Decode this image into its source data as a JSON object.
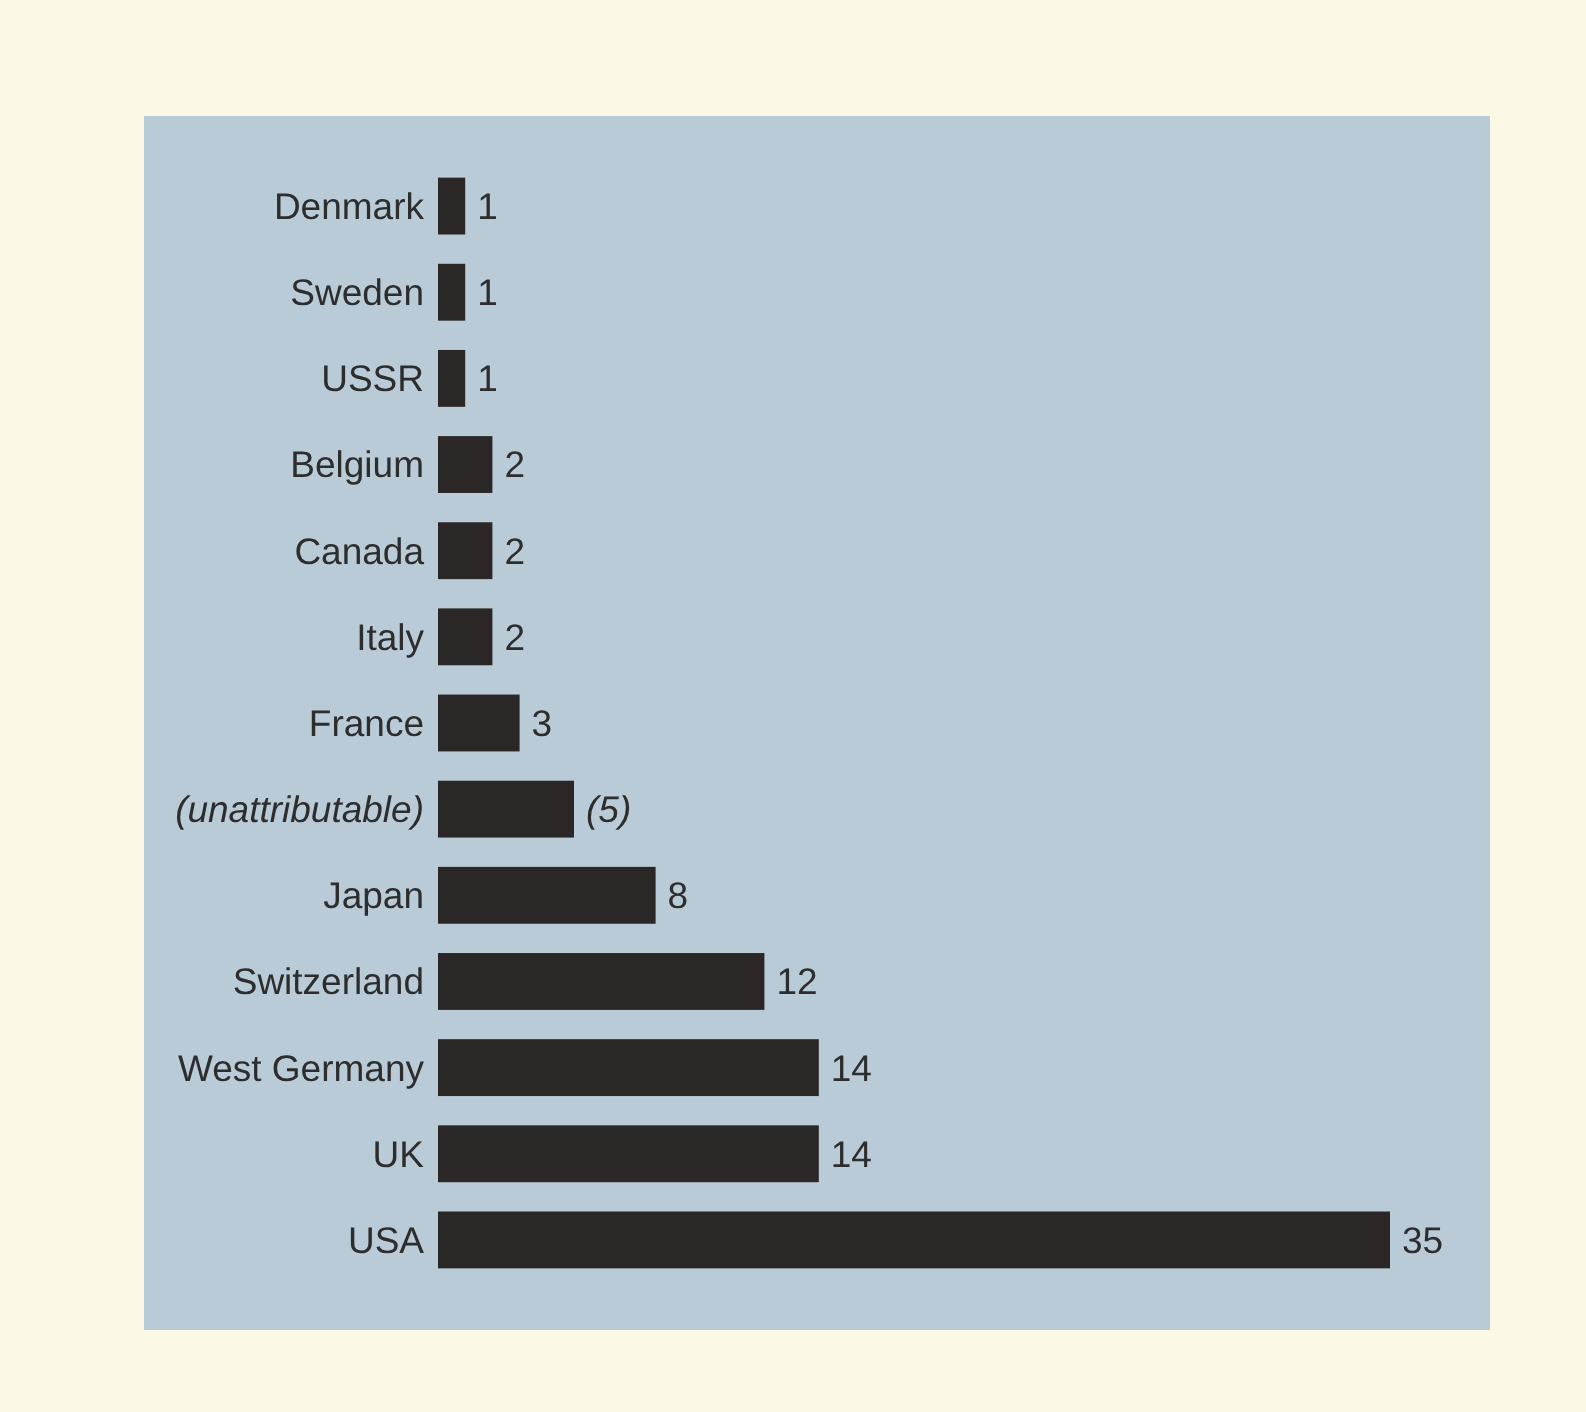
{
  "chart_data": {
    "type": "bar",
    "orientation": "horizontal",
    "categories": [
      "Denmark",
      "Sweden",
      "USSR",
      "Belgium",
      "Canada",
      "Italy",
      "France",
      "(unattributable)",
      "Japan",
      "Switzerland",
      "West Germany",
      "UK",
      "USA"
    ],
    "values": [
      1,
      1,
      1,
      2,
      2,
      2,
      3,
      5,
      8,
      12,
      14,
      14,
      35
    ],
    "color": "#2b2726",
    "value_labels": [
      "1",
      "1",
      "1",
      "2",
      "2",
      "2",
      "3",
      "(5)",
      "8",
      "12",
      "14",
      "14",
      "35"
    ]
  }
}
